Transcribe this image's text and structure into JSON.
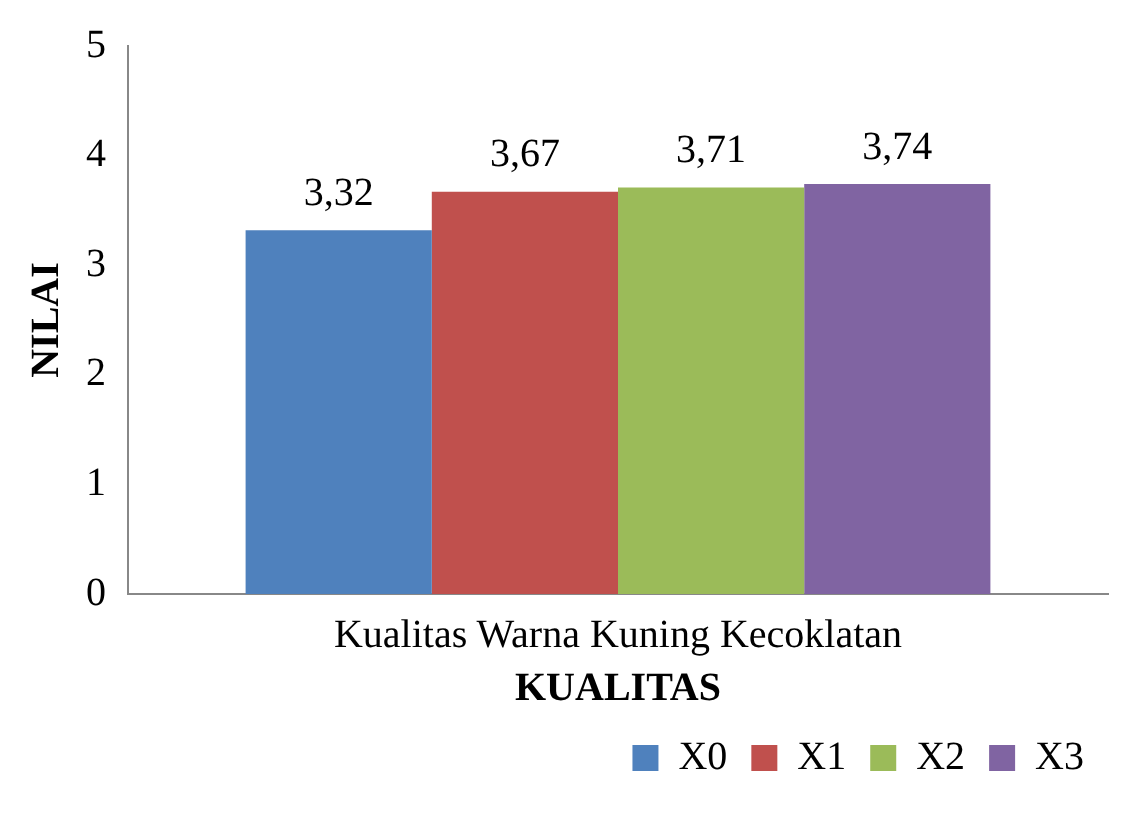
{
  "chart_data": {
    "type": "bar",
    "xlabel": "KUALITAS",
    "ylabel": "NILAI",
    "categories": [
      "Kualitas Warna Kuning Kecoklatan"
    ],
    "series": [
      {
        "name": "X0",
        "color": "#4f81bd",
        "values": [
          3.32
        ],
        "value_labels": [
          "3,32"
        ]
      },
      {
        "name": "X1",
        "color": "#c0504d",
        "values": [
          3.67
        ],
        "value_labels": [
          "3,67"
        ]
      },
      {
        "name": "X2",
        "color": "#9bbb59",
        "values": [
          3.71
        ],
        "value_labels": [
          "3,71"
        ]
      },
      {
        "name": "X3",
        "color": "#8064a2",
        "values": [
          3.74
        ],
        "value_labels": [
          "3,74"
        ]
      }
    ],
    "ylim": [
      0,
      5
    ],
    "yticks": [
      0,
      1,
      2,
      3,
      4,
      5
    ],
    "grid": false,
    "legend": "bottom right"
  }
}
